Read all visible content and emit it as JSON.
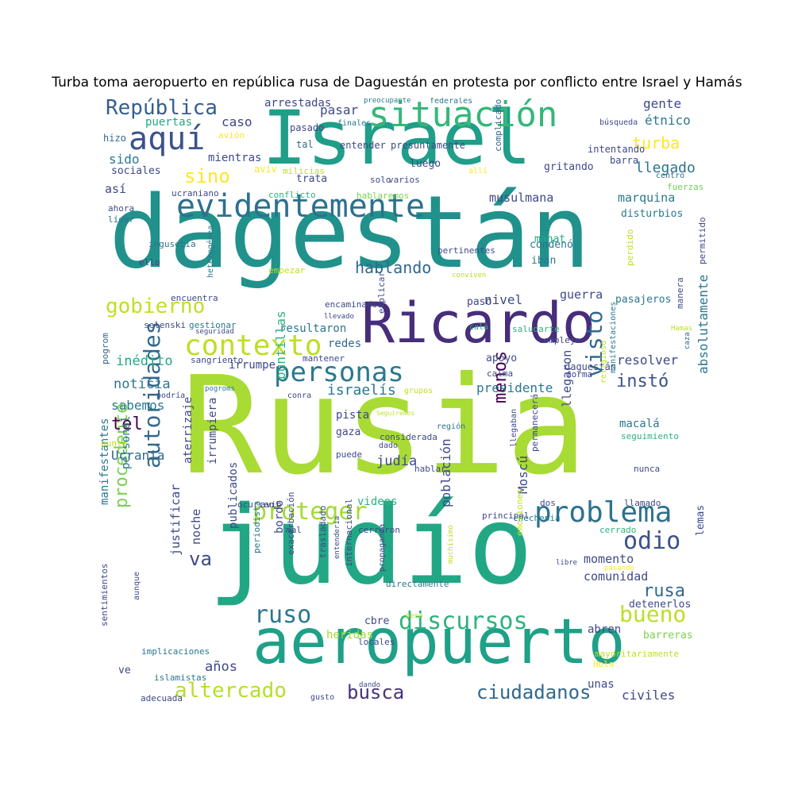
{
  "title": "Turba toma aeropuerto en república rusa de Daguestán en protesta por conflicto entre Israel y Hamás",
  "palette": [
    "#fde725",
    "#b5de2b",
    "#6ece58",
    "#35b779",
    "#1f9e89",
    "#26828e",
    "#31688e",
    "#3e4989",
    "#482878",
    "#440154"
  ],
  "words": [
    {
      "text": "Rusia",
      "color": "#a8db34"
    },
    {
      "text": "dagestán",
      "color": "#21918c"
    },
    {
      "text": "judío",
      "color": "#22a785"
    },
    {
      "text": "Israel",
      "color": "#1f9e89"
    },
    {
      "text": "aeropuerto",
      "color": "#1fa088"
    },
    {
      "text": "Ricardo",
      "color": "#472d7b"
    },
    {
      "text": "evidentemente",
      "color": "#2c718e"
    },
    {
      "text": "situación",
      "color": "#35b779"
    },
    {
      "text": "personas",
      "color": "#2a788e"
    },
    {
      "text": "contexto",
      "color": "#bddf26"
    },
    {
      "text": "aquí",
      "color": "#3b528b"
    },
    {
      "text": "República",
      "color": "#355f8d"
    },
    {
      "text": "gobierno",
      "color": "#c2df23"
    },
    {
      "text": "proteger",
      "color": "#a2da37"
    },
    {
      "text": "problema",
      "color": "#2c728e"
    },
    {
      "text": "discursos",
      "color": "#2db27d"
    },
    {
      "text": "ruso",
      "color": "#2a788e"
    },
    {
      "text": "autoridades",
      "color": "#31688e"
    },
    {
      "text": "odio",
      "color": "#3b528b"
    },
    {
      "text": "bueno",
      "color": "#bddf26"
    },
    {
      "text": "altercado",
      "color": "#b5de2b"
    },
    {
      "text": "busca",
      "color": "#46327e"
    },
    {
      "text": "ciudadanos",
      "color": "#31688e"
    },
    {
      "text": "visto",
      "color": "#31688e"
    },
    {
      "text": "rusa",
      "color": "#31688e"
    },
    {
      "text": "sino",
      "color": "#fde725"
    },
    {
      "text": "turba",
      "color": "#fde725"
    },
    {
      "text": "procedente",
      "color": "#7ad151"
    },
    {
      "text": "va",
      "color": "#3e4989"
    },
    {
      "text": "hablando",
      "color": "#31688e"
    },
    {
      "text": "instó",
      "color": "#3b528b"
    },
    {
      "text": "menos",
      "color": "#440154"
    },
    {
      "text": "tel",
      "color": "#440154"
    },
    {
      "text": "llegado",
      "color": "#2c728e"
    },
    {
      "text": "gente",
      "color": "#3e4989"
    },
    {
      "text": "étnico",
      "color": "#2a788e"
    },
    {
      "text": "pasar",
      "color": "#3e4989"
    },
    {
      "text": "caso",
      "color": "#3e4989"
    },
    {
      "text": "arrestadas",
      "color": "#3e4989"
    },
    {
      "text": "puertas",
      "color": "#22a785"
    },
    {
      "text": "sido",
      "color": "#2a788e"
    },
    {
      "text": "mientras",
      "color": "#3e4989"
    },
    {
      "text": "sociales",
      "color": "#3e4989"
    },
    {
      "text": "así",
      "color": "#3e4989"
    },
    {
      "text": "gritando",
      "color": "#3e4989"
    },
    {
      "text": "musulmana",
      "color": "#3e4989"
    },
    {
      "text": "marquina",
      "color": "#2a788e"
    },
    {
      "text": "disturbios",
      "color": "#2a788e"
    },
    {
      "text": "mahat",
      "color": "#22a785"
    },
    {
      "text": "guerra",
      "color": "#3e4989"
    },
    {
      "text": "nivel",
      "color": "#3e4989"
    },
    {
      "text": "paso",
      "color": "#3e4989"
    },
    {
      "text": "pasajeros",
      "color": "#2a788e"
    },
    {
      "text": "resultaron",
      "color": "#2a788e"
    },
    {
      "text": "redes",
      "color": "#31688e"
    },
    {
      "text": "inédito",
      "color": "#22a785"
    },
    {
      "text": "irrumpe",
      "color": "#3e4989"
    },
    {
      "text": "resolver",
      "color": "#3e4989"
    },
    {
      "text": "apoyo",
      "color": "#3e4989"
    },
    {
      "text": "noticia",
      "color": "#2a788e"
    },
    {
      "text": "israelís",
      "color": "#2a788e"
    },
    {
      "text": "presidente",
      "color": "#2a788e"
    },
    {
      "text": "sabemos",
      "color": "#2a788e"
    },
    {
      "text": "pista",
      "color": "#3e4989"
    },
    {
      "text": "gaza",
      "color": "#3e4989"
    },
    {
      "text": "judía",
      "color": "#3e4989"
    },
    {
      "text": "Ucrania",
      "color": "#31688e"
    },
    {
      "text": "videos",
      "color": "#2db27d"
    },
    {
      "text": "condenó",
      "color": "#2a788e"
    },
    {
      "text": "iban",
      "color": "#2a788e"
    },
    {
      "text": "momento",
      "color": "#3e4989"
    },
    {
      "text": "comunidad",
      "color": "#3e4989"
    },
    {
      "text": "abren",
      "color": "#3e4989"
    },
    {
      "text": "heridas",
      "color": "#a2da37"
    },
    {
      "text": "barreras",
      "color": "#7ad151"
    },
    {
      "text": "detenerlos",
      "color": "#3e4989"
    },
    {
      "text": "civiles",
      "color": "#3e4989"
    },
    {
      "text": "unas",
      "color": "#3e4989"
    },
    {
      "text": "años",
      "color": "#3e4989"
    },
    {
      "text": "cbre",
      "color": "#3e4989"
    },
    {
      "text": "ve",
      "color": "#3e4989"
    },
    {
      "text": "macalá",
      "color": "#2a788e"
    },
    {
      "text": "Moscú",
      "color": "#3e4989"
    },
    {
      "text": "puntillas",
      "color": "#2db27d"
    },
    {
      "text": "absolutamente",
      "color": "#2a788e"
    },
    {
      "text": "llegaron",
      "color": "#3e4989"
    },
    {
      "text": "población",
      "color": "#3e4989"
    },
    {
      "text": "bordo",
      "color": "#3e4989"
    },
    {
      "text": "noche",
      "color": "#3e4989"
    },
    {
      "text": "justificar",
      "color": "#3e4989"
    },
    {
      "text": "irrumpiera",
      "color": "#3e4989"
    },
    {
      "text": "aterrizaje",
      "color": "#3e4989"
    },
    {
      "text": "manifestantes",
      "color": "#2a788e"
    },
    {
      "text": "personal",
      "color": "#2a788e"
    },
    {
      "text": "publicados",
      "color": "#3e4989"
    },
    {
      "text": "lemas",
      "color": "#3e4989"
    },
    {
      "text": "aviv",
      "color": "#fde725"
    },
    {
      "text": "avión",
      "color": "#fde725"
    },
    {
      "text": "hizo",
      "color": "#31688e"
    },
    {
      "text": "tal",
      "color": "#31688e"
    },
    {
      "text": "pasado",
      "color": "#3e4989"
    },
    {
      "text": "entender",
      "color": "#3e4989"
    },
    {
      "text": "presuntamente",
      "color": "#3e4989"
    },
    {
      "text": "luego",
      "color": "#3e4989"
    },
    {
      "text": "trata",
      "color": "#3e4989"
    },
    {
      "text": "milicias",
      "color": "#bddf26"
    },
    {
      "text": "solo",
      "color": "#3e4989"
    },
    {
      "text": "varios",
      "color": "#3e4989"
    },
    {
      "text": "complicado",
      "color": "#31688e"
    },
    {
      "text": "allí",
      "color": "#fde725"
    },
    {
      "text": "intentando",
      "color": "#3e4989"
    },
    {
      "text": "barra",
      "color": "#3e4989"
    },
    {
      "text": "búsqueda",
      "color": "#3e4989"
    },
    {
      "text": "centro",
      "color": "#31688e"
    },
    {
      "text": "fuerzas",
      "color": "#6ece58"
    },
    {
      "text": "federales",
      "color": "#2a788e"
    },
    {
      "text": "preocupante",
      "color": "#2a788e"
    },
    {
      "text": "finales",
      "color": "#2a788e"
    },
    {
      "text": "hablaremos",
      "color": "#7ad151"
    },
    {
      "text": "conflicto",
      "color": "#2db27d"
    },
    {
      "text": "ucraniano",
      "color": "#3e4989"
    },
    {
      "text": "ahora",
      "color": "#3e4989"
    },
    {
      "text": "líder",
      "color": "#2a788e"
    },
    {
      "text": "ingusetia",
      "color": "#2a788e"
    },
    {
      "text": "ello",
      "color": "#3e4989"
    },
    {
      "text": "heterogénea",
      "color": "#2a788e"
    },
    {
      "text": "empezar",
      "color": "#bddf26"
    },
    {
      "text": "pertinentes",
      "color": "#3e4989"
    },
    {
      "text": "conviven",
      "color": "#bddf26"
    },
    {
      "text": "perdido",
      "color": "#bddf26"
    },
    {
      "text": "permitido",
      "color": "#3e4989"
    },
    {
      "text": "encuentra",
      "color": "#3e4989"
    },
    {
      "text": "encaminados",
      "color": "#3e4989"
    },
    {
      "text": "llevado",
      "color": "#3e4989"
    },
    {
      "text": "explicar",
      "color": "#3e4989"
    },
    {
      "text": "saludarte",
      "color": "#2db27d"
    },
    {
      "text": "manera",
      "color": "#3e4989"
    },
    {
      "text": "gestionar",
      "color": "#2a788e"
    },
    {
      "text": "seguridad",
      "color": "#3e4989"
    },
    {
      "text": "selenski",
      "color": "#3e4989"
    },
    {
      "text": "calá",
      "color": "#2db27d"
    },
    {
      "text": "complejo",
      "color": "#3e4989"
    },
    {
      "text": "Hamas",
      "color": "#bddf26"
    },
    {
      "text": "caza",
      "color": "#31688e"
    },
    {
      "text": "pogrom",
      "color": "#31688e"
    },
    {
      "text": "sangriento",
      "color": "#3e4989"
    },
    {
      "text": "mantener",
      "color": "#3e4989"
    },
    {
      "text": "daguestán",
      "color": "#3e4989"
    },
    {
      "text": "forma",
      "color": "#3e4989"
    },
    {
      "text": "calma",
      "color": "#3e4989"
    },
    {
      "text": "religioso",
      "color": "#bddf26"
    },
    {
      "text": "manifestaciones",
      "color": "#2a788e"
    },
    {
      "text": "pogroms",
      "color": "#2a788e"
    },
    {
      "text": "podría",
      "color": "#3e4989"
    },
    {
      "text": "conra",
      "color": "#3e4989"
    },
    {
      "text": "grupos",
      "color": "#bddf26"
    },
    {
      "text": "Seguiremos",
      "color": "#bddf26"
    },
    {
      "text": "punto",
      "color": "#bddf26"
    },
    {
      "text": "considerada",
      "color": "#3e4989"
    },
    {
      "text": "dado",
      "color": "#3e4989"
    },
    {
      "text": "puede",
      "color": "#3e4989"
    },
    {
      "text": "región",
      "color": "#2a788e"
    },
    {
      "text": "llegaban",
      "color": "#3e4989"
    },
    {
      "text": "permanecerá",
      "color": "#3e4989"
    },
    {
      "text": "seguimiento",
      "color": "#2db27d"
    },
    {
      "text": "nunca",
      "color": "#3e4989"
    },
    {
      "text": "hablar",
      "color": "#3e4989"
    },
    {
      "text": "ocurren",
      "color": "#3e4989"
    },
    {
      "text": "avib",
      "color": "#3e4989"
    },
    {
      "text": "principal",
      "color": "#3e4989"
    },
    {
      "text": "dos",
      "color": "#3e4989"
    },
    {
      "text": "llamado",
      "color": "#3e4989"
    },
    {
      "text": "chechenia",
      "color": "#2a788e"
    },
    {
      "text": "mal",
      "color": "#3e4989"
    },
    {
      "text": "cerraron",
      "color": "#3e4989"
    },
    {
      "text": "cerrado",
      "color": "#2db27d"
    },
    {
      "text": "emociones",
      "color": "#bddf26"
    },
    {
      "text": "periodista",
      "color": "#2a788e"
    },
    {
      "text": "exacerbación",
      "color": "#3e4989"
    },
    {
      "text": "trasladado",
      "color": "#3e4989"
    },
    {
      "text": "entendería",
      "color": "#3e4989"
    },
    {
      "text": "internacional",
      "color": "#3e4989"
    },
    {
      "text": "propaganda",
      "color": "#3e4989"
    },
    {
      "text": "muchísimo",
      "color": "#bddf26"
    },
    {
      "text": "directamente",
      "color": "#2a788e"
    },
    {
      "text": "libre",
      "color": "#3e4989"
    },
    {
      "text": "pasando",
      "color": "#fde725"
    },
    {
      "text": "aunque",
      "color": "#3e4989"
    },
    {
      "text": "sentimientos",
      "color": "#3e4989"
    },
    {
      "text": "implicaciones",
      "color": "#2a788e"
    },
    {
      "text": "islamistas",
      "color": "#2a788e"
    },
    {
      "text": "adecuada",
      "color": "#3e4989"
    },
    {
      "text": "gusto",
      "color": "#3e4989"
    },
    {
      "text": "dando",
      "color": "#3e4989"
    },
    {
      "text": "locales",
      "color": "#3e4989"
    },
    {
      "text": "pesa",
      "color": "#bddf26"
    },
    {
      "text": "mayoritariamente",
      "color": "#bddf26"
    },
    {
      "text": "Hola",
      "color": "#fde725"
    },
    {
      "text": "buenas",
      "color": "#3e4989"
    }
  ]
}
